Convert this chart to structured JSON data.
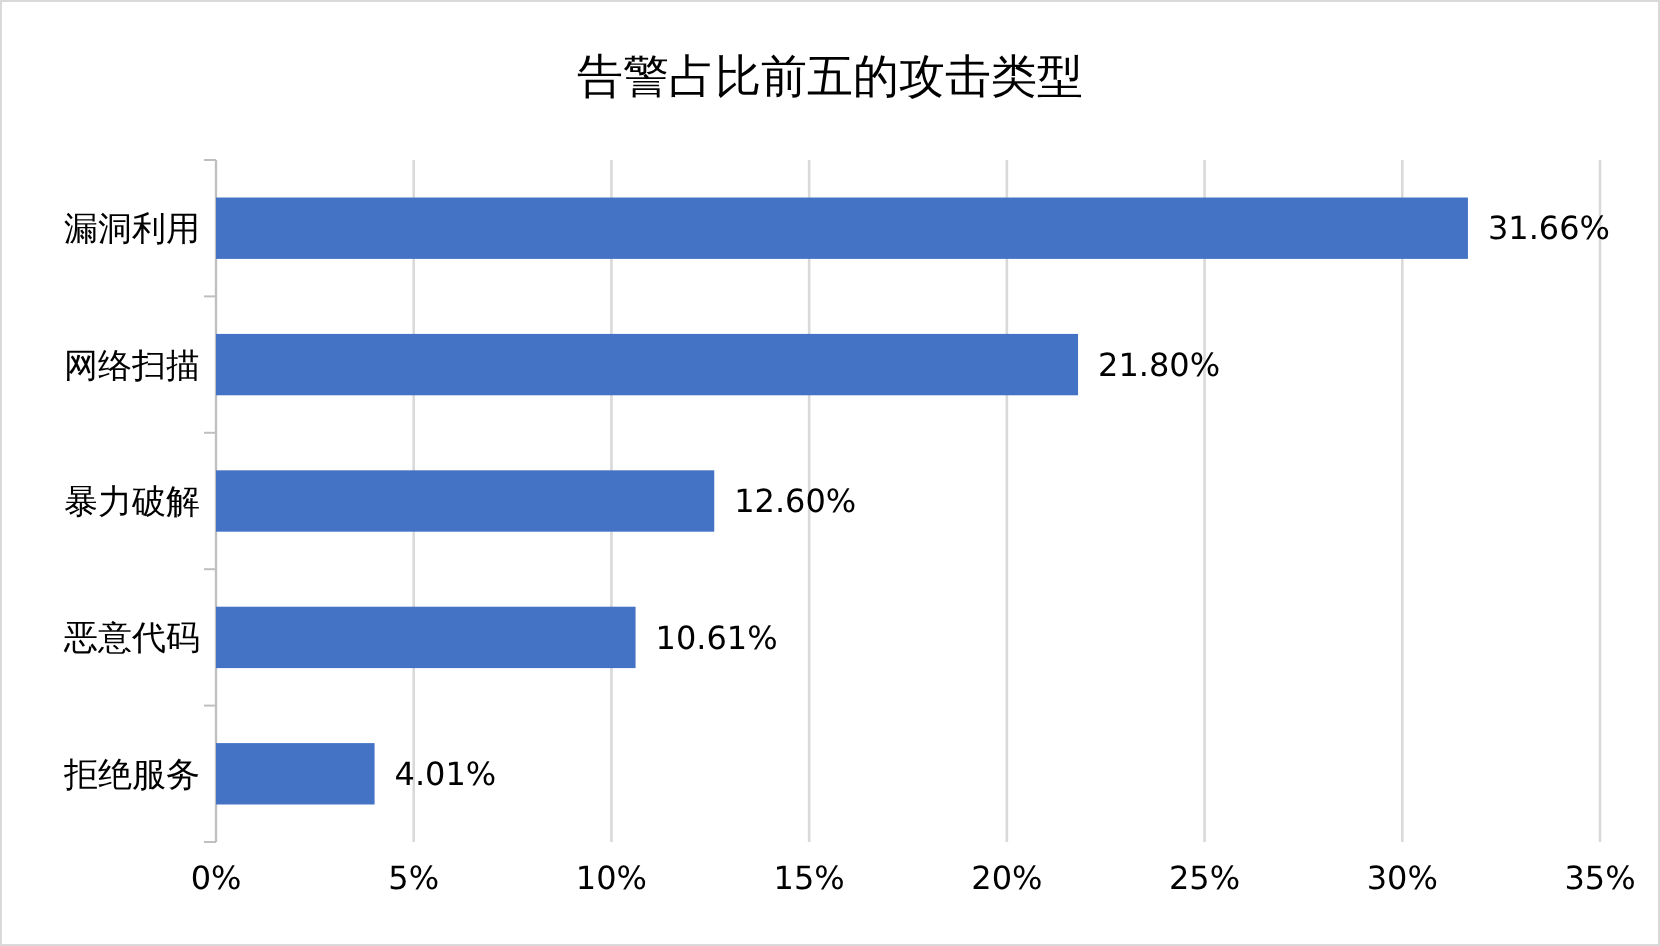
{
  "chart_data": {
    "type": "bar",
    "orientation": "horizontal",
    "title": "告警占比前五的攻击类型",
    "categories": [
      "漏洞利用",
      "网络扫描",
      "暴力破解",
      "恶意代码",
      "拒绝服务"
    ],
    "values": [
      31.66,
      21.8,
      12.6,
      10.61,
      4.01
    ],
    "value_labels": [
      "31.66%",
      "21.80%",
      "12.60%",
      "10.61%",
      "4.01%"
    ],
    "color": "#4472c4",
    "xlim": [
      0,
      35
    ],
    "xticks": [
      {
        "value": 0,
        "label": "0%"
      },
      {
        "value": 5,
        "label": "5%"
      },
      {
        "value": 10,
        "label": "10%"
      },
      {
        "value": 15,
        "label": "15%"
      },
      {
        "value": 20,
        "label": "20%"
      },
      {
        "value": 25,
        "label": "25%"
      },
      {
        "value": 30,
        "label": "30%"
      },
      {
        "value": 35,
        "label": "35%"
      }
    ],
    "grid": "x"
  }
}
